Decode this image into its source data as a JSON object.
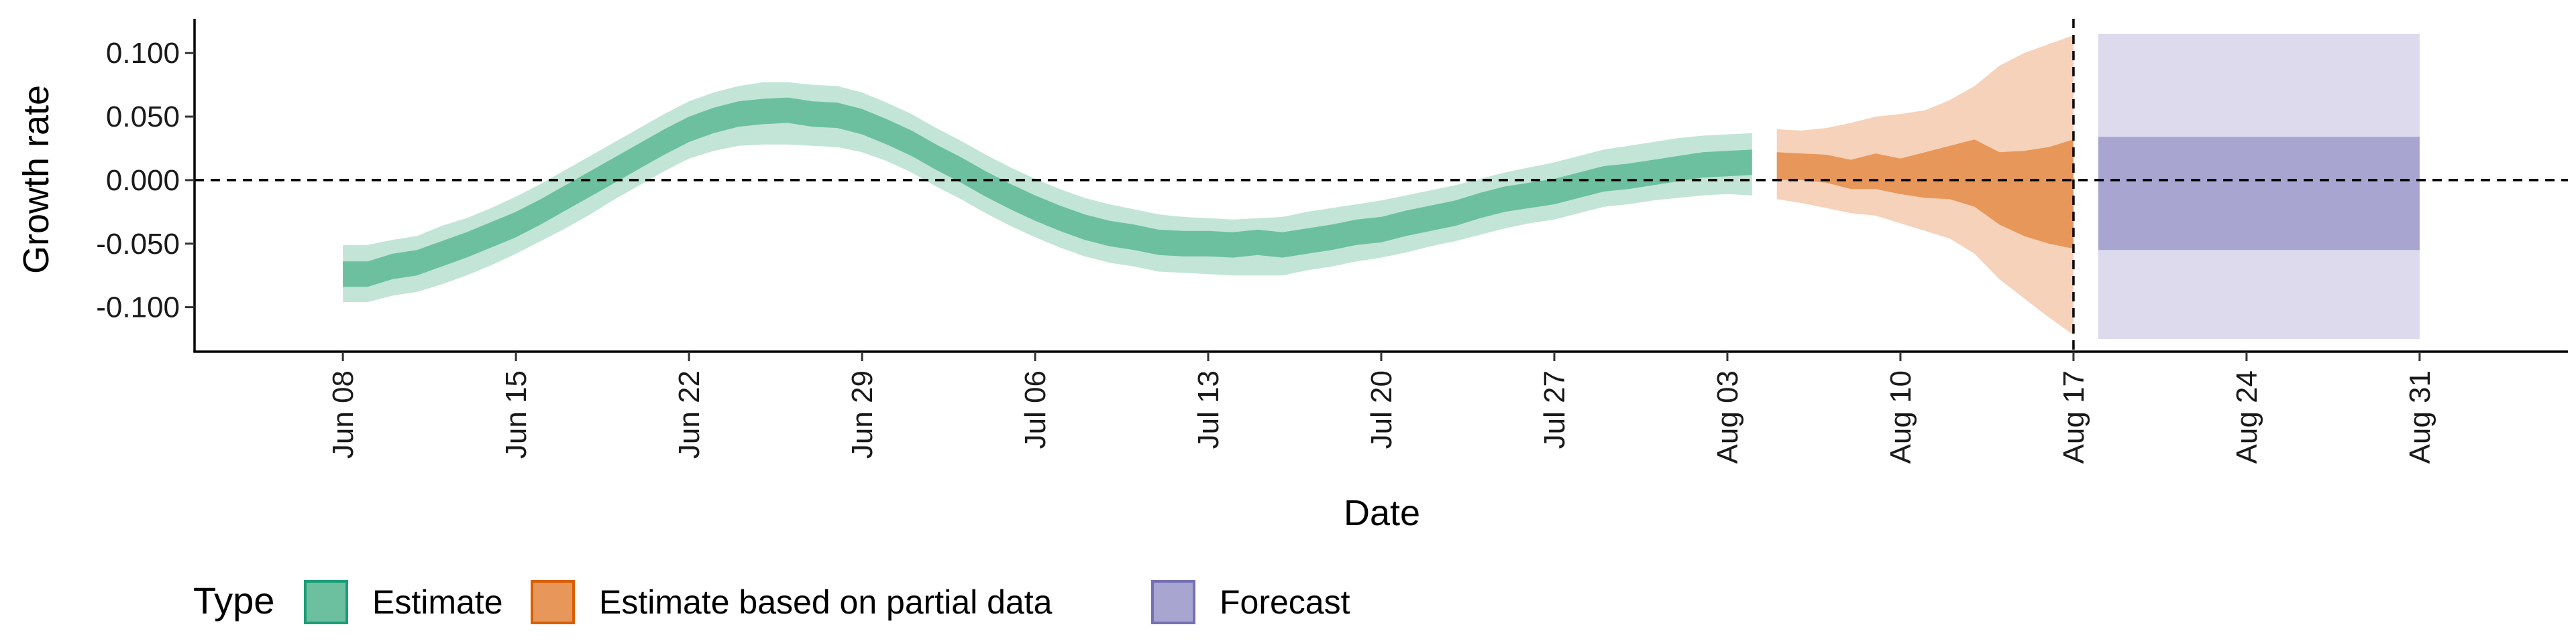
{
  "chart_data": {
    "type": "area",
    "xlabel": "Date",
    "ylabel": "Growth rate",
    "ylim": [
      -0.135,
      0.127
    ],
    "xlim": [
      "2020-06-02",
      "2020-09-06"
    ],
    "x_ticks": [
      {
        "date": "2020-06-08",
        "label": "Jun 08"
      },
      {
        "date": "2020-06-15",
        "label": "Jun 15"
      },
      {
        "date": "2020-06-22",
        "label": "Jun 22"
      },
      {
        "date": "2020-06-29",
        "label": "Jun 29"
      },
      {
        "date": "2020-07-06",
        "label": "Jul 06"
      },
      {
        "date": "2020-07-13",
        "label": "Jul 13"
      },
      {
        "date": "2020-07-20",
        "label": "Jul 20"
      },
      {
        "date": "2020-07-27",
        "label": "Jul 27"
      },
      {
        "date": "2020-08-03",
        "label": "Aug 03"
      },
      {
        "date": "2020-08-10",
        "label": "Aug 10"
      },
      {
        "date": "2020-08-17",
        "label": "Aug 17"
      },
      {
        "date": "2020-08-24",
        "label": "Aug 24"
      },
      {
        "date": "2020-08-31",
        "label": "Aug 31"
      }
    ],
    "y_ticks": [
      {
        "value": 0.1,
        "label": "0.100"
      },
      {
        "value": 0.05,
        "label": "0.050"
      },
      {
        "value": 0.0,
        "label": "0.000"
      },
      {
        "value": -0.05,
        "label": "-0.050"
      },
      {
        "value": -0.1,
        "label": "-0.100"
      }
    ],
    "reference_lines": {
      "horizontal_y": 0.0,
      "vertical_date": "2020-08-17"
    },
    "legend": {
      "title": "Type",
      "position": "bottom-left",
      "entries": [
        {
          "label": "Estimate",
          "fill": "#6cc0a0",
          "stroke": "#1b9e77"
        },
        {
          "label": "Estimate based on partial data",
          "fill": "#e8975a",
          "stroke": "#d95f02"
        },
        {
          "label": "Forecast",
          "fill": "#a9a5d1",
          "stroke": "#7570b3"
        }
      ]
    },
    "series": [
      {
        "type_label": "Estimate",
        "color_inner": "#6cc0a0",
        "color_outer": "#c2e5d7",
        "points": [
          {
            "date": "2020-06-08",
            "median": -0.074,
            "lower_50": -0.084,
            "upper_50": -0.064,
            "lower_90": -0.096,
            "upper_90": -0.051
          },
          {
            "date": "2020-06-09",
            "median": -0.074,
            "lower_50": -0.084,
            "upper_50": -0.064,
            "lower_90": -0.096,
            "upper_90": -0.051
          },
          {
            "date": "2020-06-10",
            "median": -0.068,
            "lower_50": -0.078,
            "upper_50": -0.058,
            "lower_90": -0.091,
            "upper_90": -0.047
          },
          {
            "date": "2020-06-11",
            "median": -0.065,
            "lower_50": -0.075,
            "upper_50": -0.055,
            "lower_90": -0.088,
            "upper_90": -0.044
          },
          {
            "date": "2020-06-12",
            "median": -0.058,
            "lower_50": -0.068,
            "upper_50": -0.048,
            "lower_90": -0.082,
            "upper_90": -0.036
          },
          {
            "date": "2020-06-13",
            "median": -0.051,
            "lower_50": -0.061,
            "upper_50": -0.041,
            "lower_90": -0.075,
            "upper_90": -0.03
          },
          {
            "date": "2020-06-14",
            "median": -0.043,
            "lower_50": -0.053,
            "upper_50": -0.033,
            "lower_90": -0.067,
            "upper_90": -0.022
          },
          {
            "date": "2020-06-15",
            "median": -0.035,
            "lower_50": -0.045,
            "upper_50": -0.025,
            "lower_90": -0.058,
            "upper_90": -0.013
          },
          {
            "date": "2020-06-16",
            "median": -0.025,
            "lower_50": -0.035,
            "upper_50": -0.015,
            "lower_90": -0.048,
            "upper_90": -0.003
          },
          {
            "date": "2020-06-17",
            "median": -0.014,
            "lower_50": -0.024,
            "upper_50": -0.004,
            "lower_90": -0.038,
            "upper_90": 0.008
          },
          {
            "date": "2020-06-18",
            "median": -0.003,
            "lower_50": -0.013,
            "upper_50": 0.007,
            "lower_90": -0.027,
            "upper_90": 0.019
          },
          {
            "date": "2020-06-19",
            "median": 0.008,
            "lower_50": -0.002,
            "upper_50": 0.018,
            "lower_90": -0.015,
            "upper_90": 0.03
          },
          {
            "date": "2020-06-20",
            "median": 0.019,
            "lower_50": 0.009,
            "upper_50": 0.029,
            "lower_90": -0.004,
            "upper_90": 0.041
          },
          {
            "date": "2020-06-21",
            "median": 0.03,
            "lower_50": 0.02,
            "upper_50": 0.04,
            "lower_90": 0.007,
            "upper_90": 0.052
          },
          {
            "date": "2020-06-22",
            "median": 0.04,
            "lower_50": 0.03,
            "upper_50": 0.05,
            "lower_90": 0.017,
            "upper_90": 0.062
          },
          {
            "date": "2020-06-23",
            "median": 0.047,
            "lower_50": 0.037,
            "upper_50": 0.057,
            "lower_90": 0.023,
            "upper_90": 0.069
          },
          {
            "date": "2020-06-24",
            "median": 0.052,
            "lower_50": 0.042,
            "upper_50": 0.062,
            "lower_90": 0.027,
            "upper_90": 0.074
          },
          {
            "date": "2020-06-25",
            "median": 0.054,
            "lower_50": 0.044,
            "upper_50": 0.064,
            "lower_90": 0.028,
            "upper_90": 0.077
          },
          {
            "date": "2020-06-26",
            "median": 0.055,
            "lower_50": 0.045,
            "upper_50": 0.065,
            "lower_90": 0.028,
            "upper_90": 0.077
          },
          {
            "date": "2020-06-27",
            "median": 0.052,
            "lower_50": 0.042,
            "upper_50": 0.062,
            "lower_90": 0.027,
            "upper_90": 0.075
          },
          {
            "date": "2020-06-28",
            "median": 0.051,
            "lower_50": 0.041,
            "upper_50": 0.061,
            "lower_90": 0.026,
            "upper_90": 0.074
          },
          {
            "date": "2020-06-29",
            "median": 0.046,
            "lower_50": 0.036,
            "upper_50": 0.056,
            "lower_90": 0.022,
            "upper_90": 0.069
          },
          {
            "date": "2020-06-30",
            "median": 0.038,
            "lower_50": 0.028,
            "upper_50": 0.048,
            "lower_90": 0.015,
            "upper_90": 0.061
          },
          {
            "date": "2020-07-01",
            "median": 0.029,
            "lower_50": 0.019,
            "upper_50": 0.039,
            "lower_90": 0.006,
            "upper_90": 0.052
          },
          {
            "date": "2020-07-02",
            "median": 0.018,
            "lower_50": 0.008,
            "upper_50": 0.028,
            "lower_90": -0.005,
            "upper_90": 0.041
          },
          {
            "date": "2020-07-03",
            "median": 0.008,
            "lower_50": -0.002,
            "upper_50": 0.018,
            "lower_90": -0.015,
            "upper_90": 0.031
          },
          {
            "date": "2020-07-04",
            "median": -0.003,
            "lower_50": -0.013,
            "upper_50": 0.007,
            "lower_90": -0.026,
            "upper_90": 0.02
          },
          {
            "date": "2020-07-05",
            "median": -0.013,
            "lower_50": -0.023,
            "upper_50": -0.003,
            "lower_90": -0.036,
            "upper_90": 0.01
          },
          {
            "date": "2020-07-06",
            "median": -0.022,
            "lower_50": -0.032,
            "upper_50": -0.012,
            "lower_90": -0.045,
            "upper_90": 0.001
          },
          {
            "date": "2020-07-07",
            "median": -0.03,
            "lower_50": -0.04,
            "upper_50": -0.02,
            "lower_90": -0.053,
            "upper_90": -0.007
          },
          {
            "date": "2020-07-08",
            "median": -0.037,
            "lower_50": -0.047,
            "upper_50": -0.027,
            "lower_90": -0.06,
            "upper_90": -0.014
          },
          {
            "date": "2020-07-09",
            "median": -0.042,
            "lower_50": -0.052,
            "upper_50": -0.032,
            "lower_90": -0.065,
            "upper_90": -0.019
          },
          {
            "date": "2020-07-10",
            "median": -0.045,
            "lower_50": -0.055,
            "upper_50": -0.035,
            "lower_90": -0.068,
            "upper_90": -0.023
          },
          {
            "date": "2020-07-11",
            "median": -0.049,
            "lower_50": -0.059,
            "upper_50": -0.039,
            "lower_90": -0.072,
            "upper_90": -0.027
          },
          {
            "date": "2020-07-12",
            "median": -0.05,
            "lower_50": -0.06,
            "upper_50": -0.04,
            "lower_90": -0.073,
            "upper_90": -0.029
          },
          {
            "date": "2020-07-13",
            "median": -0.05,
            "lower_50": -0.06,
            "upper_50": -0.04,
            "lower_90": -0.074,
            "upper_90": -0.03
          },
          {
            "date": "2020-07-14",
            "median": -0.051,
            "lower_50": -0.061,
            "upper_50": -0.041,
            "lower_90": -0.075,
            "upper_90": -0.031
          },
          {
            "date": "2020-07-15",
            "median": -0.049,
            "lower_50": -0.059,
            "upper_50": -0.039,
            "lower_90": -0.075,
            "upper_90": -0.03
          },
          {
            "date": "2020-07-16",
            "median": -0.051,
            "lower_50": -0.061,
            "upper_50": -0.041,
            "lower_90": -0.075,
            "upper_90": -0.029
          },
          {
            "date": "2020-07-17",
            "median": -0.048,
            "lower_50": -0.058,
            "upper_50": -0.038,
            "lower_90": -0.071,
            "upper_90": -0.025
          },
          {
            "date": "2020-07-18",
            "median": -0.045,
            "lower_50": -0.055,
            "upper_50": -0.035,
            "lower_90": -0.068,
            "upper_90": -0.022
          },
          {
            "date": "2020-07-19",
            "median": -0.041,
            "lower_50": -0.051,
            "upper_50": -0.031,
            "lower_90": -0.064,
            "upper_90": -0.019
          },
          {
            "date": "2020-07-20",
            "median": -0.039,
            "lower_50": -0.049,
            "upper_50": -0.029,
            "lower_90": -0.061,
            "upper_90": -0.016
          },
          {
            "date": "2020-07-21",
            "median": -0.034,
            "lower_50": -0.044,
            "upper_50": -0.024,
            "lower_90": -0.057,
            "upper_90": -0.012
          },
          {
            "date": "2020-07-22",
            "median": -0.03,
            "lower_50": -0.04,
            "upper_50": -0.02,
            "lower_90": -0.052,
            "upper_90": -0.008
          },
          {
            "date": "2020-07-23",
            "median": -0.026,
            "lower_50": -0.036,
            "upper_50": -0.016,
            "lower_90": -0.048,
            "upper_90": -0.004
          },
          {
            "date": "2020-07-24",
            "median": -0.02,
            "lower_50": -0.03,
            "upper_50": -0.01,
            "lower_90": -0.043,
            "upper_90": 0.001
          },
          {
            "date": "2020-07-25",
            "median": -0.015,
            "lower_50": -0.025,
            "upper_50": -0.005,
            "lower_90": -0.038,
            "upper_90": 0.006
          },
          {
            "date": "2020-07-26",
            "median": -0.012,
            "lower_50": -0.022,
            "upper_50": -0.002,
            "lower_90": -0.034,
            "upper_90": 0.01
          },
          {
            "date": "2020-07-27",
            "median": -0.009,
            "lower_50": -0.019,
            "upper_50": 0.001,
            "lower_90": -0.031,
            "upper_90": 0.014
          },
          {
            "date": "2020-07-28",
            "median": -0.004,
            "lower_50": -0.014,
            "upper_50": 0.006,
            "lower_90": -0.026,
            "upper_90": 0.019
          },
          {
            "date": "2020-07-29",
            "median": 0.001,
            "lower_50": -0.009,
            "upper_50": 0.011,
            "lower_90": -0.021,
            "upper_90": 0.024
          },
          {
            "date": "2020-07-30",
            "median": 0.003,
            "lower_50": -0.007,
            "upper_50": 0.013,
            "lower_90": -0.019,
            "upper_90": 0.027
          },
          {
            "date": "2020-07-31",
            "median": 0.006,
            "lower_50": -0.004,
            "upper_50": 0.016,
            "lower_90": -0.016,
            "upper_90": 0.03
          },
          {
            "date": "2020-08-01",
            "median": 0.009,
            "lower_50": -0.001,
            "upper_50": 0.019,
            "lower_90": -0.014,
            "upper_90": 0.033
          },
          {
            "date": "2020-08-02",
            "median": 0.012,
            "lower_50": 0.002,
            "upper_50": 0.022,
            "lower_90": -0.012,
            "upper_90": 0.035
          },
          {
            "date": "2020-08-03",
            "median": 0.013,
            "lower_50": 0.003,
            "upper_50": 0.023,
            "lower_90": -0.011,
            "upper_90": 0.036
          },
          {
            "date": "2020-08-04",
            "median": 0.014,
            "lower_50": 0.004,
            "upper_50": 0.024,
            "lower_90": -0.012,
            "upper_90": 0.037
          }
        ]
      },
      {
        "type_label": "Estimate based on partial data",
        "color_inner": "#e8975a",
        "color_outer": "#f5d2b9",
        "points": [
          {
            "date": "2020-08-05",
            "lower_50": 0.0,
            "upper_50": 0.022,
            "lower_90": -0.015,
            "upper_90": 0.04
          },
          {
            "date": "2020-08-06",
            "lower_50": 0.0,
            "upper_50": 0.021,
            "lower_90": -0.018,
            "upper_90": 0.039
          },
          {
            "date": "2020-08-07",
            "lower_50": -0.002,
            "upper_50": 0.02,
            "lower_90": -0.022,
            "upper_90": 0.041
          },
          {
            "date": "2020-08-08",
            "lower_50": -0.007,
            "upper_50": 0.016,
            "lower_90": -0.026,
            "upper_90": 0.045
          },
          {
            "date": "2020-08-09",
            "lower_50": -0.007,
            "upper_50": 0.021,
            "lower_90": -0.028,
            "upper_90": 0.05
          },
          {
            "date": "2020-08-10",
            "lower_50": -0.011,
            "upper_50": 0.017,
            "lower_90": -0.034,
            "upper_90": 0.052
          },
          {
            "date": "2020-08-11",
            "lower_50": -0.014,
            "upper_50": 0.022,
            "lower_90": -0.04,
            "upper_90": 0.055
          },
          {
            "date": "2020-08-12",
            "lower_50": -0.015,
            "upper_50": 0.027,
            "lower_90": -0.046,
            "upper_90": 0.063
          },
          {
            "date": "2020-08-13",
            "lower_50": -0.021,
            "upper_50": 0.032,
            "lower_90": -0.058,
            "upper_90": 0.074
          },
          {
            "date": "2020-08-14",
            "lower_50": -0.035,
            "upper_50": 0.022,
            "lower_90": -0.078,
            "upper_90": 0.09
          },
          {
            "date": "2020-08-15",
            "lower_50": -0.044,
            "upper_50": 0.023,
            "lower_90": -0.093,
            "upper_90": 0.1
          },
          {
            "date": "2020-08-16",
            "lower_50": -0.05,
            "upper_50": 0.026,
            "lower_90": -0.108,
            "upper_90": 0.107
          },
          {
            "date": "2020-08-17",
            "lower_50": -0.054,
            "upper_50": 0.032,
            "lower_90": -0.122,
            "upper_90": 0.114
          }
        ]
      },
      {
        "type_label": "Forecast",
        "color_inner": "#a9a5d1",
        "color_outer": "#dcdaec",
        "points": [
          {
            "date": "2020-08-18",
            "lower_50": -0.055,
            "upper_50": 0.034,
            "lower_90": -0.125,
            "upper_90": 0.115
          },
          {
            "date": "2020-08-31",
            "lower_50": -0.055,
            "upper_50": 0.034,
            "lower_90": -0.125,
            "upper_90": 0.115
          }
        ]
      }
    ]
  }
}
